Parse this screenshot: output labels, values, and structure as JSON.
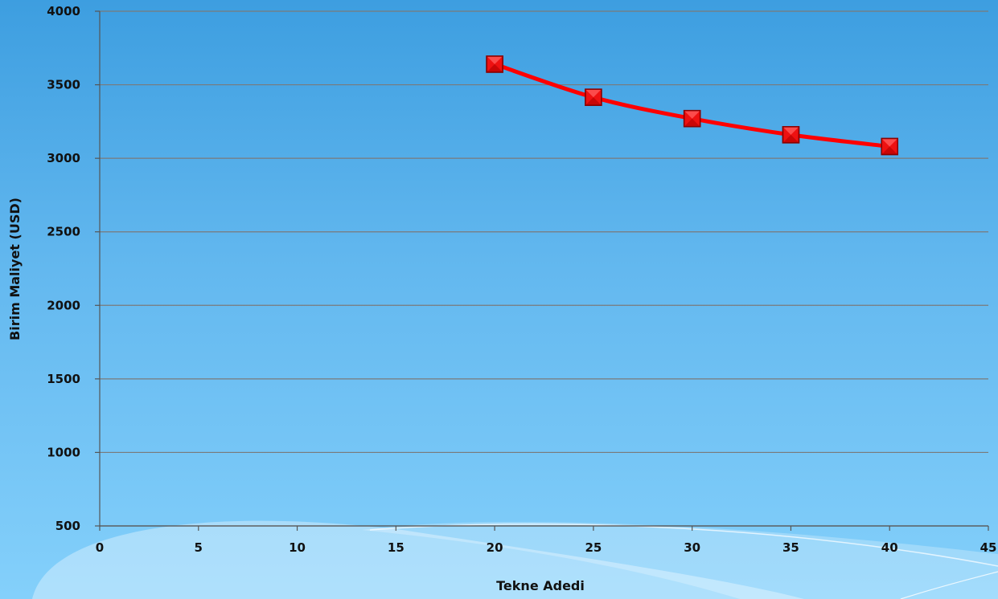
{
  "chart_data": {
    "type": "line",
    "title": "",
    "xlabel": "Tekne Adedi",
    "ylabel": "Birim Maliyet  (USD)",
    "xlim": [
      0,
      45
    ],
    "ylim": [
      500,
      4000
    ],
    "x_ticks": [
      "0",
      "5",
      "10",
      "15",
      "20",
      "25",
      "30",
      "35",
      "40",
      "45"
    ],
    "y_ticks": [
      "500",
      "1000",
      "1500",
      "2000",
      "2500",
      "3000",
      "3500",
      "4000"
    ],
    "grid": true,
    "series": [
      {
        "color": "#ff0000",
        "marker": "square",
        "points": [
          {
            "x": 20,
            "y": 3640
          },
          {
            "x": 25,
            "y": 3415
          },
          {
            "x": 30,
            "y": 3270
          },
          {
            "x": 35,
            "y": 3160
          },
          {
            "x": 40,
            "y": 3080
          }
        ]
      }
    ]
  },
  "colors": {
    "line": "#ff0000",
    "marker_fill": "#ee1111",
    "marker_stroke": "#8b0000",
    "grid": "#7a7a7a",
    "axis": "#555555"
  }
}
